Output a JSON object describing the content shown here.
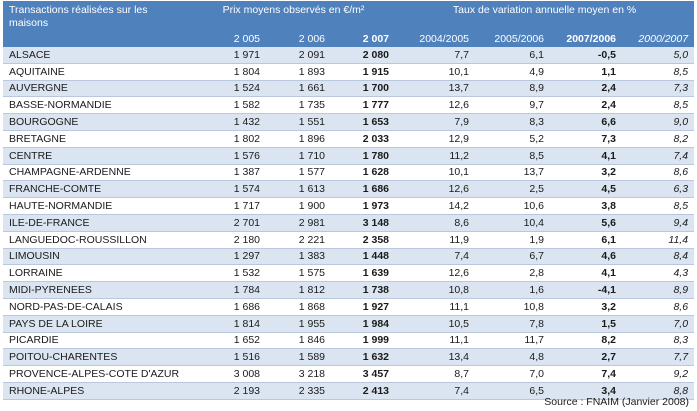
{
  "header": {
    "corner_label": "Transactions réalisées sur les maisons",
    "group_prices": "Prix moyens observés en €/m²",
    "group_variation": "Taux de variation annuelle moyen en %",
    "columns": [
      "2 005",
      "2 006",
      "2 007",
      "2004/2005",
      "2005/2006",
      "2007/2006",
      "2000/2007"
    ]
  },
  "rows": [
    {
      "region": "ALSACE",
      "p2005": "1 971",
      "p2006": "2 091",
      "p2007": "2 080",
      "v0405": "7,7",
      "v0506": "6,1",
      "v0706": "-0,5",
      "v0007": "5,0"
    },
    {
      "region": "AQUITAINE",
      "p2005": "1 804",
      "p2006": "1 893",
      "p2007": "1 915",
      "v0405": "10,1",
      "v0506": "4,9",
      "v0706": "1,1",
      "v0007": "8,5"
    },
    {
      "region": "AUVERGNE",
      "p2005": "1 524",
      "p2006": "1 661",
      "p2007": "1 700",
      "v0405": "13,7",
      "v0506": "8,9",
      "v0706": "2,4",
      "v0007": "7,3"
    },
    {
      "region": "BASSE-NORMANDIE",
      "p2005": "1 582",
      "p2006": "1 735",
      "p2007": "1 777",
      "v0405": "12,6",
      "v0506": "9,7",
      "v0706": "2,4",
      "v0007": "8,5"
    },
    {
      "region": "BOURGOGNE",
      "p2005": "1 432",
      "p2006": "1 551",
      "p2007": "1 653",
      "v0405": "7,9",
      "v0506": "8,3",
      "v0706": "6,6",
      "v0007": "9,0"
    },
    {
      "region": "BRETAGNE",
      "p2005": "1 802",
      "p2006": "1 896",
      "p2007": "2 033",
      "v0405": "12,9",
      "v0506": "5,2",
      "v0706": "7,3",
      "v0007": "8,2"
    },
    {
      "region": "CENTRE",
      "p2005": "1 576",
      "p2006": "1 710",
      "p2007": "1 780",
      "v0405": "11,2",
      "v0506": "8,5",
      "v0706": "4,1",
      "v0007": "7,4"
    },
    {
      "region": "CHAMPAGNE-ARDENNE",
      "p2005": "1 387",
      "p2006": "1 577",
      "p2007": "1 628",
      "v0405": "10,1",
      "v0506": "13,7",
      "v0706": "3,2",
      "v0007": "8,6"
    },
    {
      "region": "FRANCHE-COMTE",
      "p2005": "1 574",
      "p2006": "1 613",
      "p2007": "1 686",
      "v0405": "12,6",
      "v0506": "2,5",
      "v0706": "4,5",
      "v0007": "6,3"
    },
    {
      "region": "HAUTE-NORMANDIE",
      "p2005": "1 717",
      "p2006": "1 900",
      "p2007": "1 973",
      "v0405": "14,2",
      "v0506": "10,6",
      "v0706": "3,8",
      "v0007": "8,5"
    },
    {
      "region": "ILE-DE-FRANCE",
      "p2005": "2 701",
      "p2006": "2 981",
      "p2007": "3 148",
      "v0405": "8,6",
      "v0506": "10,4",
      "v0706": "5,6",
      "v0007": "9,4"
    },
    {
      "region": "LANGUEDOC-ROUSSILLON",
      "p2005": "2 180",
      "p2006": "2 221",
      "p2007": "2 358",
      "v0405": "11,9",
      "v0506": "1,9",
      "v0706": "6,1",
      "v0007": "11,4"
    },
    {
      "region": "LIMOUSIN",
      "p2005": "1 297",
      "p2006": "1 383",
      "p2007": "1 448",
      "v0405": "7,4",
      "v0506": "6,7",
      "v0706": "4,6",
      "v0007": "8,4"
    },
    {
      "region": "LORRAINE",
      "p2005": "1 532",
      "p2006": "1 575",
      "p2007": "1 639",
      "v0405": "12,6",
      "v0506": "2,8",
      "v0706": "4,1",
      "v0007": "4,3"
    },
    {
      "region": "MIDI-PYRENEES",
      "p2005": "1 784",
      "p2006": "1 812",
      "p2007": "1 738",
      "v0405": "10,8",
      "v0506": "1,6",
      "v0706": "-4,1",
      "v0007": "8,9"
    },
    {
      "region": "NORD-PAS-DE-CALAIS",
      "p2005": "1 686",
      "p2006": "1 868",
      "p2007": "1 927",
      "v0405": "11,1",
      "v0506": "10,8",
      "v0706": "3,2",
      "v0007": "8,6"
    },
    {
      "region": "PAYS DE LA LOIRE",
      "p2005": "1 814",
      "p2006": "1 955",
      "p2007": "1 984",
      "v0405": "10,5",
      "v0506": "7,8",
      "v0706": "1,5",
      "v0007": "7,0"
    },
    {
      "region": "PICARDIE",
      "p2005": "1 652",
      "p2006": "1 846",
      "p2007": "1 999",
      "v0405": "11,1",
      "v0506": "11,7",
      "v0706": "8,2",
      "v0007": "8,3"
    },
    {
      "region": "POITOU-CHARENTES",
      "p2005": "1 516",
      "p2006": "1 589",
      "p2007": "1 632",
      "v0405": "13,4",
      "v0506": "4,8",
      "v0706": "2,7",
      "v0007": "7,7"
    },
    {
      "region": "PROVENCE-ALPES-COTE D'AZUR",
      "p2005": "3 008",
      "p2006": "3 218",
      "p2007": "3 457",
      "v0405": "8,7",
      "v0506": "7,0",
      "v0706": "7,4",
      "v0007": "9,2"
    },
    {
      "region": "RHONE-ALPES",
      "p2005": "2 193",
      "p2006": "2 335",
      "p2007": "2 413",
      "v0405": "7,4",
      "v0506": "6,5",
      "v0706": "3,4",
      "v0007": "8,8"
    }
  ],
  "footer": {
    "source": "Source : FNAIM (Janvier 2008)"
  },
  "colors": {
    "header_bg": "#4f81bd",
    "header_text": "#ffffff",
    "band_odd": "#dbe5f1",
    "band_even": "#ffffff",
    "row_border": "#b9c8dc"
  }
}
